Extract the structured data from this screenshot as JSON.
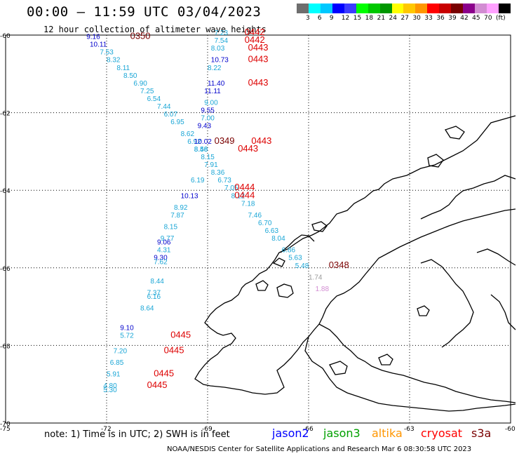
{
  "header": {
    "title": "00:00 – 11:59 UTC 03/04/2023",
    "subtitle": "12 hour collection of altimeter wave heights"
  },
  "colorbar": {
    "colors": [
      "#6e6e6e",
      "#00ffff",
      "#00c8ff",
      "#0000ff",
      "#3c3cff",
      "#00ff00",
      "#00c800",
      "#009600",
      "#ffff00",
      "#ffc800",
      "#ff9600",
      "#ff0000",
      "#c80000",
      "#780000",
      "#8b008b",
      "#d28cd2",
      "#ffa0ff",
      "#000000"
    ],
    "ticks": [
      "3",
      "6",
      "9",
      "12",
      "15",
      "18",
      "21",
      "24",
      "27",
      "30",
      "33",
      "36",
      "39",
      "42",
      "45",
      "70",
      "(ft)"
    ]
  },
  "map_axes": {
    "lat_labels": [
      "-60",
      "-62",
      "-64",
      "-66",
      "-68",
      "-70"
    ],
    "lon_labels": [
      "-75",
      "-72",
      "-69",
      "-66",
      "-63",
      "-60"
    ]
  },
  "observations": [
    {
      "text": "9.16",
      "color": "#0000cc",
      "lon": -72.6,
      "lat": -60.1
    },
    {
      "text": "0350",
      "color": "#7a0000",
      "lon": -71.3,
      "lat": -60.1
    },
    {
      "text": "10.11",
      "color": "#0000cc",
      "lon": -72.5,
      "lat": -60.3
    },
    {
      "text": "7.53",
      "color": "#1aa6d6",
      "lon": -72.2,
      "lat": -60.5
    },
    {
      "text": "8.32",
      "color": "#1aa6d6",
      "lon": -72.0,
      "lat": -60.7
    },
    {
      "text": "8.11",
      "color": "#1aa6d6",
      "lon": -71.7,
      "lat": -60.9
    },
    {
      "text": "8.50",
      "color": "#1aa6d6",
      "lon": -71.5,
      "lat": -61.1
    },
    {
      "text": "6.90",
      "color": "#1aa6d6",
      "lon": -71.2,
      "lat": -61.3
    },
    {
      "text": "7.25",
      "color": "#1aa6d6",
      "lon": -71.0,
      "lat": -61.5
    },
    {
      "text": "6.54",
      "color": "#1aa6d6",
      "lon": -70.8,
      "lat": -61.7
    },
    {
      "text": "7.44",
      "color": "#1aa6d6",
      "lon": -70.5,
      "lat": -61.9
    },
    {
      "text": "6.07",
      "color": "#1aa6d6",
      "lon": -70.3,
      "lat": -62.1
    },
    {
      "text": "6.95",
      "color": "#1aa6d6",
      "lon": -70.1,
      "lat": -62.3
    },
    {
      "text": "8.62",
      "color": "#1aa6d6",
      "lon": -69.8,
      "lat": -62.6
    },
    {
      "text": "6.92",
      "color": "#1aa6d6",
      "lon": -69.6,
      "lat": -62.8
    },
    {
      "text": "8.46",
      "color": "#1aa6d6",
      "lon": -69.4,
      "lat": -63.0
    },
    {
      "text": "8.15",
      "color": "#1aa6d6",
      "lon": -69.2,
      "lat": -63.2
    },
    {
      "text": "7.91",
      "color": "#1aa6d6",
      "lon": -69.1,
      "lat": -63.4
    },
    {
      "text": "8.36",
      "color": "#1aa6d6",
      "lon": -68.9,
      "lat": -63.6
    },
    {
      "text": "6.73",
      "color": "#1aa6d6",
      "lon": -68.7,
      "lat": -63.8
    },
    {
      "text": "7.05",
      "color": "#1aa6d6",
      "lon": -68.5,
      "lat": -64.0
    },
    {
      "text": "8.12",
      "color": "#1aa6d6",
      "lon": -68.3,
      "lat": -64.2
    },
    {
      "text": "7.18",
      "color": "#1aa6d6",
      "lon": -68.0,
      "lat": -64.4
    },
    {
      "text": "7.46",
      "color": "#1aa6d6",
      "lon": -67.8,
      "lat": -64.7
    },
    {
      "text": "6.70",
      "color": "#1aa6d6",
      "lon": -67.5,
      "lat": -64.9
    },
    {
      "text": "6.63",
      "color": "#1aa6d6",
      "lon": -67.3,
      "lat": -65.1
    },
    {
      "text": "8.04",
      "color": "#1aa6d6",
      "lon": -67.1,
      "lat": -65.3
    },
    {
      "text": "6.86",
      "color": "#1aa6d6",
      "lon": -66.8,
      "lat": -65.6
    },
    {
      "text": "5.63",
      "color": "#1aa6d6",
      "lon": -66.6,
      "lat": -65.8
    },
    {
      "text": "5.48",
      "color": "#1aa6d6",
      "lon": -66.4,
      "lat": -66.0
    },
    {
      "text": "0348",
      "color": "#7a0000",
      "lon": -65.4,
      "lat": -66.0
    },
    {
      "text": "1.74",
      "color": "#9a9a9a",
      "lon": -66.0,
      "lat": -66.3
    },
    {
      "text": "1.88",
      "color": "#d28cd2",
      "lon": -65.8,
      "lat": -66.6
    },
    {
      "text": "7.23",
      "color": "#1aa6d6",
      "lon": -68.8,
      "lat": -60.0
    },
    {
      "text": "0442",
      "color": "#dd0000",
      "lon": -67.9,
      "lat": -60.0
    },
    {
      "text": "7.54",
      "color": "#1aa6d6",
      "lon": -68.8,
      "lat": -60.2
    },
    {
      "text": "0442",
      "color": "#dd0000",
      "lon": -67.9,
      "lat": -60.2
    },
    {
      "text": "8.03",
      "color": "#1aa6d6",
      "lon": -68.9,
      "lat": -60.4
    },
    {
      "text": "0443",
      "color": "#dd0000",
      "lon": -67.8,
      "lat": -60.4
    },
    {
      "text": "10.73",
      "color": "#0000cc",
      "lon": -68.9,
      "lat": -60.7
    },
    {
      "text": "0443",
      "color": "#dd0000",
      "lon": -67.8,
      "lat": -60.7
    },
    {
      "text": "8.22",
      "color": "#1aa6d6",
      "lon": -69.0,
      "lat": -60.9
    },
    {
      "text": "11.40",
      "color": "#0000cc",
      "lon": -69.0,
      "lat": -61.3
    },
    {
      "text": "0443",
      "color": "#dd0000",
      "lon": -67.8,
      "lat": -61.3
    },
    {
      "text": "11.11",
      "color": "#0000cc",
      "lon": -69.1,
      "lat": -61.5
    },
    {
      "text": "9.00",
      "color": "#1aa6d6",
      "lon": -69.1,
      "lat": -61.8
    },
    {
      "text": "9.55",
      "color": "#0000cc",
      "lon": -69.2,
      "lat": -62.0
    },
    {
      "text": "7.00",
      "color": "#1aa6d6",
      "lon": -69.2,
      "lat": -62.2
    },
    {
      "text": "9.43",
      "color": "#0000cc",
      "lon": -69.3,
      "lat": -62.4
    },
    {
      "text": "10.02",
      "color": "#0000cc",
      "lon": -69.4,
      "lat": -62.8
    },
    {
      "text": "0349",
      "color": "#7a0000",
      "lon": -68.8,
      "lat": -62.8
    },
    {
      "text": "0443",
      "color": "#dd0000",
      "lon": -67.7,
      "lat": -62.8
    },
    {
      "text": "8.58",
      "color": "#1aa6d6",
      "lon": -69.4,
      "lat": -63.0
    },
    {
      "text": "0443",
      "color": "#dd0000",
      "lon": -68.1,
      "lat": -63.0
    },
    {
      "text": "6.19",
      "color": "#1aa6d6",
      "lon": -69.5,
      "lat": -63.8
    },
    {
      "text": "0444",
      "color": "#dd0000",
      "lon": -68.2,
      "lat": -64.0
    },
    {
      "text": "10.13",
      "color": "#0000cc",
      "lon": -69.8,
      "lat": -64.2
    },
    {
      "text": "0444",
      "color": "#dd0000",
      "lon": -68.2,
      "lat": -64.2
    },
    {
      "text": "8.92",
      "color": "#1aa6d6",
      "lon": -70.0,
      "lat": -64.5
    },
    {
      "text": "7.87",
      "color": "#1aa6d6",
      "lon": -70.1,
      "lat": -64.7
    },
    {
      "text": "8.15",
      "color": "#1aa6d6",
      "lon": -70.3,
      "lat": -65.0
    },
    {
      "text": "9.77",
      "color": "#1aa6d6",
      "lon": -70.4,
      "lat": -65.3
    },
    {
      "text": "9.06",
      "color": "#0000cc",
      "lon": -70.5,
      "lat": -65.4
    },
    {
      "text": "4.31",
      "color": "#1aa6d6",
      "lon": -70.5,
      "lat": -65.6
    },
    {
      "text": "9.30",
      "color": "#0000cc",
      "lon": -70.6,
      "lat": -65.8
    },
    {
      "text": "7.62",
      "color": "#1aa6d6",
      "lon": -70.6,
      "lat": -65.9
    },
    {
      "text": "8.44",
      "color": "#1aa6d6",
      "lon": -70.7,
      "lat": -66.4
    },
    {
      "text": "7.37",
      "color": "#1aa6d6",
      "lon": -70.8,
      "lat": -66.7
    },
    {
      "text": "6.16",
      "color": "#1aa6d6",
      "lon": -70.8,
      "lat": -66.8
    },
    {
      "text": "8.64",
      "color": "#1aa6d6",
      "lon": -71.0,
      "lat": -67.1
    },
    {
      "text": "9.10",
      "color": "#0000cc",
      "lon": -71.6,
      "lat": -67.6
    },
    {
      "text": "5.72",
      "color": "#1aa6d6",
      "lon": -71.6,
      "lat": -67.8
    },
    {
      "text": "0445",
      "color": "#dd0000",
      "lon": -70.1,
      "lat": -67.8
    },
    {
      "text": "7.20",
      "color": "#1aa6d6",
      "lon": -71.8,
      "lat": -68.2
    },
    {
      "text": "0445",
      "color": "#dd0000",
      "lon": -70.3,
      "lat": -68.2
    },
    {
      "text": "6.85",
      "color": "#1aa6d6",
      "lon": -71.9,
      "lat": -68.5
    },
    {
      "text": "5.91",
      "color": "#1aa6d6",
      "lon": -72.0,
      "lat": -68.8
    },
    {
      "text": "0445",
      "color": "#dd0000",
      "lon": -70.6,
      "lat": -68.8
    },
    {
      "text": "4.80",
      "color": "#1aa6d6",
      "lon": -72.1,
      "lat": -69.1
    },
    {
      "text": "5.30",
      "color": "#1aa6d6",
      "lon": -72.1,
      "lat": -69.2
    },
    {
      "text": "0445",
      "color": "#dd0000",
      "lon": -70.8,
      "lat": -69.1
    }
  ],
  "footer": {
    "note": "note: 1) Time is in UTC; 2) SWH is in feet",
    "satellites": [
      {
        "name": "jason2",
        "color": "#0000ff"
      },
      {
        "name": "jason3",
        "color": "#00a000"
      },
      {
        "name": "altika",
        "color": "#ff9600"
      },
      {
        "name": "cryosat",
        "color": "#ff0000"
      },
      {
        "name": "s3a",
        "color": "#7a0000"
      }
    ],
    "credit": "NOAA/NESDIS Center for Satellite Applications and Research   Mar  6 08:30:58 UTC 2023"
  }
}
